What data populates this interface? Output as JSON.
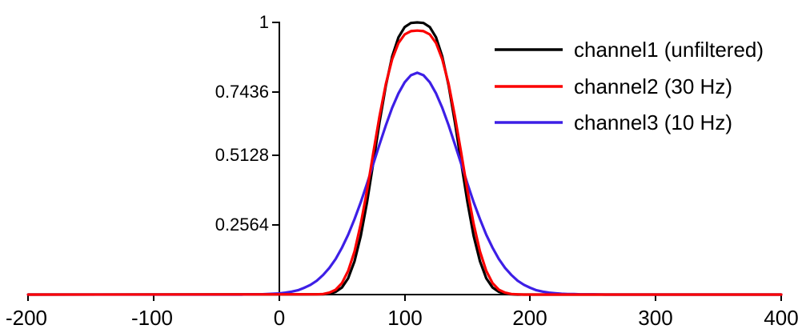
{
  "chart_data": {
    "type": "line",
    "title": "",
    "xlabel": "",
    "ylabel": "",
    "grid": false,
    "legend_position": "top-right",
    "x_axis": {
      "min": -200,
      "max": 400,
      "ticks": [
        {
          "value": -200,
          "label": "-200"
        },
        {
          "value": -100,
          "label": "-100"
        },
        {
          "value": 0,
          "label": "0"
        },
        {
          "value": 100,
          "label": "100"
        },
        {
          "value": 200,
          "label": "200"
        },
        {
          "value": 300,
          "label": "300"
        },
        {
          "value": 400,
          "label": "400"
        }
      ]
    },
    "y_axis": {
      "min": 0,
      "max": 1,
      "ticks": [
        {
          "value": 1,
          "label": "1"
        },
        {
          "value": 0.7436,
          "label": "0.7436"
        },
        {
          "value": 0.5128,
          "label": "0.5128"
        },
        {
          "value": 0.2564,
          "label": "0.2564"
        }
      ]
    },
    "series": [
      {
        "name": "channel1 (unfiltered)",
        "color": "#000000",
        "points": [
          [
            -200,
            0
          ],
          [
            35,
            0.001
          ],
          [
            40,
            0.003
          ],
          [
            45,
            0.01
          ],
          [
            50,
            0.026
          ],
          [
            55,
            0.06
          ],
          [
            60,
            0.122
          ],
          [
            65,
            0.215
          ],
          [
            70,
            0.34
          ],
          [
            75,
            0.485
          ],
          [
            80,
            0.634
          ],
          [
            85,
            0.768
          ],
          [
            90,
            0.874
          ],
          [
            95,
            0.945
          ],
          [
            100,
            0.983
          ],
          [
            105,
            0.998
          ],
          [
            110,
            1
          ],
          [
            115,
            0.998
          ],
          [
            120,
            0.983
          ],
          [
            125,
            0.945
          ],
          [
            130,
            0.874
          ],
          [
            135,
            0.768
          ],
          [
            140,
            0.634
          ],
          [
            145,
            0.485
          ],
          [
            150,
            0.34
          ],
          [
            155,
            0.215
          ],
          [
            160,
            0.122
          ],
          [
            165,
            0.06
          ],
          [
            170,
            0.026
          ],
          [
            175,
            0.01
          ],
          [
            180,
            0.003
          ],
          [
            185,
            0.001
          ],
          [
            190,
            0
          ],
          [
            400,
            0
          ]
        ]
      },
      {
        "name": "channel2 (30 Hz)",
        "color": "#fb0000",
        "points": [
          [
            -200,
            0
          ],
          [
            30,
            0.001
          ],
          [
            35,
            0.002
          ],
          [
            40,
            0.007
          ],
          [
            45,
            0.018
          ],
          [
            50,
            0.042
          ],
          [
            55,
            0.087
          ],
          [
            60,
            0.158
          ],
          [
            65,
            0.259
          ],
          [
            70,
            0.383
          ],
          [
            75,
            0.521
          ],
          [
            80,
            0.656
          ],
          [
            85,
            0.774
          ],
          [
            90,
            0.864
          ],
          [
            95,
            0.924
          ],
          [
            100,
            0.956
          ],
          [
            105,
            0.968
          ],
          [
            110,
            0.97
          ],
          [
            115,
            0.968
          ],
          [
            120,
            0.956
          ],
          [
            125,
            0.924
          ],
          [
            130,
            0.864
          ],
          [
            135,
            0.774
          ],
          [
            140,
            0.656
          ],
          [
            145,
            0.521
          ],
          [
            150,
            0.383
          ],
          [
            155,
            0.259
          ],
          [
            160,
            0.158
          ],
          [
            165,
            0.087
          ],
          [
            170,
            0.042
          ],
          [
            175,
            0.018
          ],
          [
            180,
            0.007
          ],
          [
            185,
            0.002
          ],
          [
            190,
            0.001
          ],
          [
            195,
            0
          ],
          [
            400,
            0
          ]
        ]
      },
      {
        "name": "channel3 (10 Hz)",
        "color": "#3d1fe6",
        "points": [
          [
            -200,
            0
          ],
          [
            -30,
            0
          ],
          [
            -25,
            0.001
          ],
          [
            -20,
            0.001
          ],
          [
            -15,
            0.001
          ],
          [
            -10,
            0.002
          ],
          [
            -5,
            0.003
          ],
          [
            0,
            0.004
          ],
          [
            5,
            0.007
          ],
          [
            10,
            0.011
          ],
          [
            15,
            0.016
          ],
          [
            20,
            0.025
          ],
          [
            25,
            0.036
          ],
          [
            30,
            0.051
          ],
          [
            35,
            0.072
          ],
          [
            40,
            0.098
          ],
          [
            45,
            0.131
          ],
          [
            50,
            0.172
          ],
          [
            55,
            0.22
          ],
          [
            60,
            0.277
          ],
          [
            65,
            0.339
          ],
          [
            70,
            0.408
          ],
          [
            75,
            0.48
          ],
          [
            80,
            0.552
          ],
          [
            85,
            0.622
          ],
          [
            90,
            0.686
          ],
          [
            95,
            0.739
          ],
          [
            100,
            0.78
          ],
          [
            105,
            0.806
          ],
          [
            110,
            0.815
          ],
          [
            115,
            0.806
          ],
          [
            120,
            0.78
          ],
          [
            125,
            0.739
          ],
          [
            130,
            0.686
          ],
          [
            135,
            0.622
          ],
          [
            140,
            0.552
          ],
          [
            145,
            0.48
          ],
          [
            150,
            0.408
          ],
          [
            155,
            0.339
          ],
          [
            160,
            0.277
          ],
          [
            165,
            0.22
          ],
          [
            170,
            0.172
          ],
          [
            175,
            0.131
          ],
          [
            180,
            0.098
          ],
          [
            185,
            0.072
          ],
          [
            190,
            0.051
          ],
          [
            195,
            0.036
          ],
          [
            200,
            0.025
          ],
          [
            205,
            0.016
          ],
          [
            210,
            0.011
          ],
          [
            215,
            0.007
          ],
          [
            220,
            0.005
          ],
          [
            225,
            0.003
          ],
          [
            230,
            0.002
          ],
          [
            235,
            0.002
          ],
          [
            240,
            0.001
          ],
          [
            250,
            0.001
          ],
          [
            260,
            0
          ],
          [
            400,
            0
          ]
        ]
      }
    ]
  }
}
